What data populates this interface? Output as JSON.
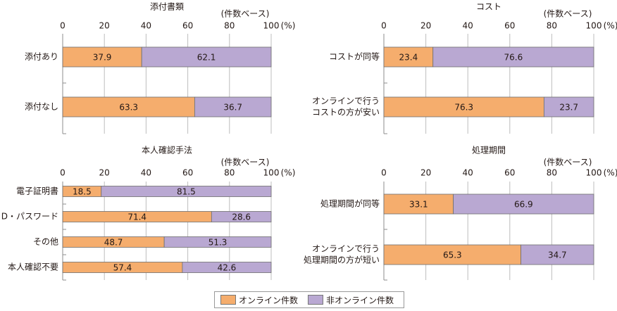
{
  "colors": {
    "online": "#F5AD6D",
    "offline": "#B9A8D2",
    "axis": "#8c8c8c",
    "grid": "#bdbdbd",
    "text": "#231815"
  },
  "unit_note": "(件数ベース)",
  "percent_label": "(%)",
  "legend": {
    "online": "オンライン件数",
    "offline": "非オンライン件数"
  },
  "chart_data": [
    {
      "type": "bar",
      "stacked": true,
      "orientation": "horizontal",
      "title": "添付書類",
      "categories": [
        [
          "添付あり"
        ],
        [
          "添付なし"
        ]
      ],
      "series": [
        {
          "name": "オンライン件数",
          "values": [
            37.9,
            63.3
          ]
        },
        {
          "name": "非オンライン件数",
          "values": [
            62.1,
            36.7
          ]
        }
      ],
      "xlim": [
        0,
        100
      ],
      "xticks": [
        "0",
        "20",
        "40",
        "60",
        "80",
        "100"
      ]
    },
    {
      "type": "bar",
      "stacked": true,
      "orientation": "horizontal",
      "title": "コスト",
      "categories": [
        [
          "コストが同等"
        ],
        [
          "オンラインで行う",
          "コストの方が安い"
        ]
      ],
      "series": [
        {
          "name": "オンライン件数",
          "values": [
            23.4,
            76.3
          ]
        },
        {
          "name": "非オンライン件数",
          "values": [
            76.6,
            23.7
          ]
        }
      ],
      "xlim": [
        0,
        100
      ],
      "xticks": [
        "0",
        "20",
        "40",
        "60",
        "80",
        "100"
      ]
    },
    {
      "type": "bar",
      "stacked": true,
      "orientation": "horizontal",
      "title": "本人確認手法",
      "categories": [
        [
          "電子証明書"
        ],
        [
          "D・パスワード"
        ],
        [
          "その他"
        ],
        [
          "本人確認不要"
        ]
      ],
      "series": [
        {
          "name": "オンライン件数",
          "values": [
            18.5,
            71.4,
            48.7,
            57.4
          ]
        },
        {
          "name": "非オンライン件数",
          "values": [
            81.5,
            28.6,
            51.3,
            42.6
          ]
        }
      ],
      "xlim": [
        0,
        100
      ],
      "xticks": [
        "0",
        "20",
        "40",
        "60",
        "80",
        "100"
      ]
    },
    {
      "type": "bar",
      "stacked": true,
      "orientation": "horizontal",
      "title": "処理期間",
      "categories": [
        [
          "処理期間が同等"
        ],
        [
          "オンラインで行う",
          "処理期間の方が短い"
        ]
      ],
      "series": [
        {
          "name": "オンライン件数",
          "values": [
            33.1,
            65.3
          ]
        },
        {
          "name": "非オンライン件数",
          "values": [
            66.9,
            34.7
          ]
        }
      ],
      "xlim": [
        0,
        100
      ],
      "xticks": [
        "0",
        "20",
        "40",
        "60",
        "80",
        "100"
      ]
    }
  ]
}
